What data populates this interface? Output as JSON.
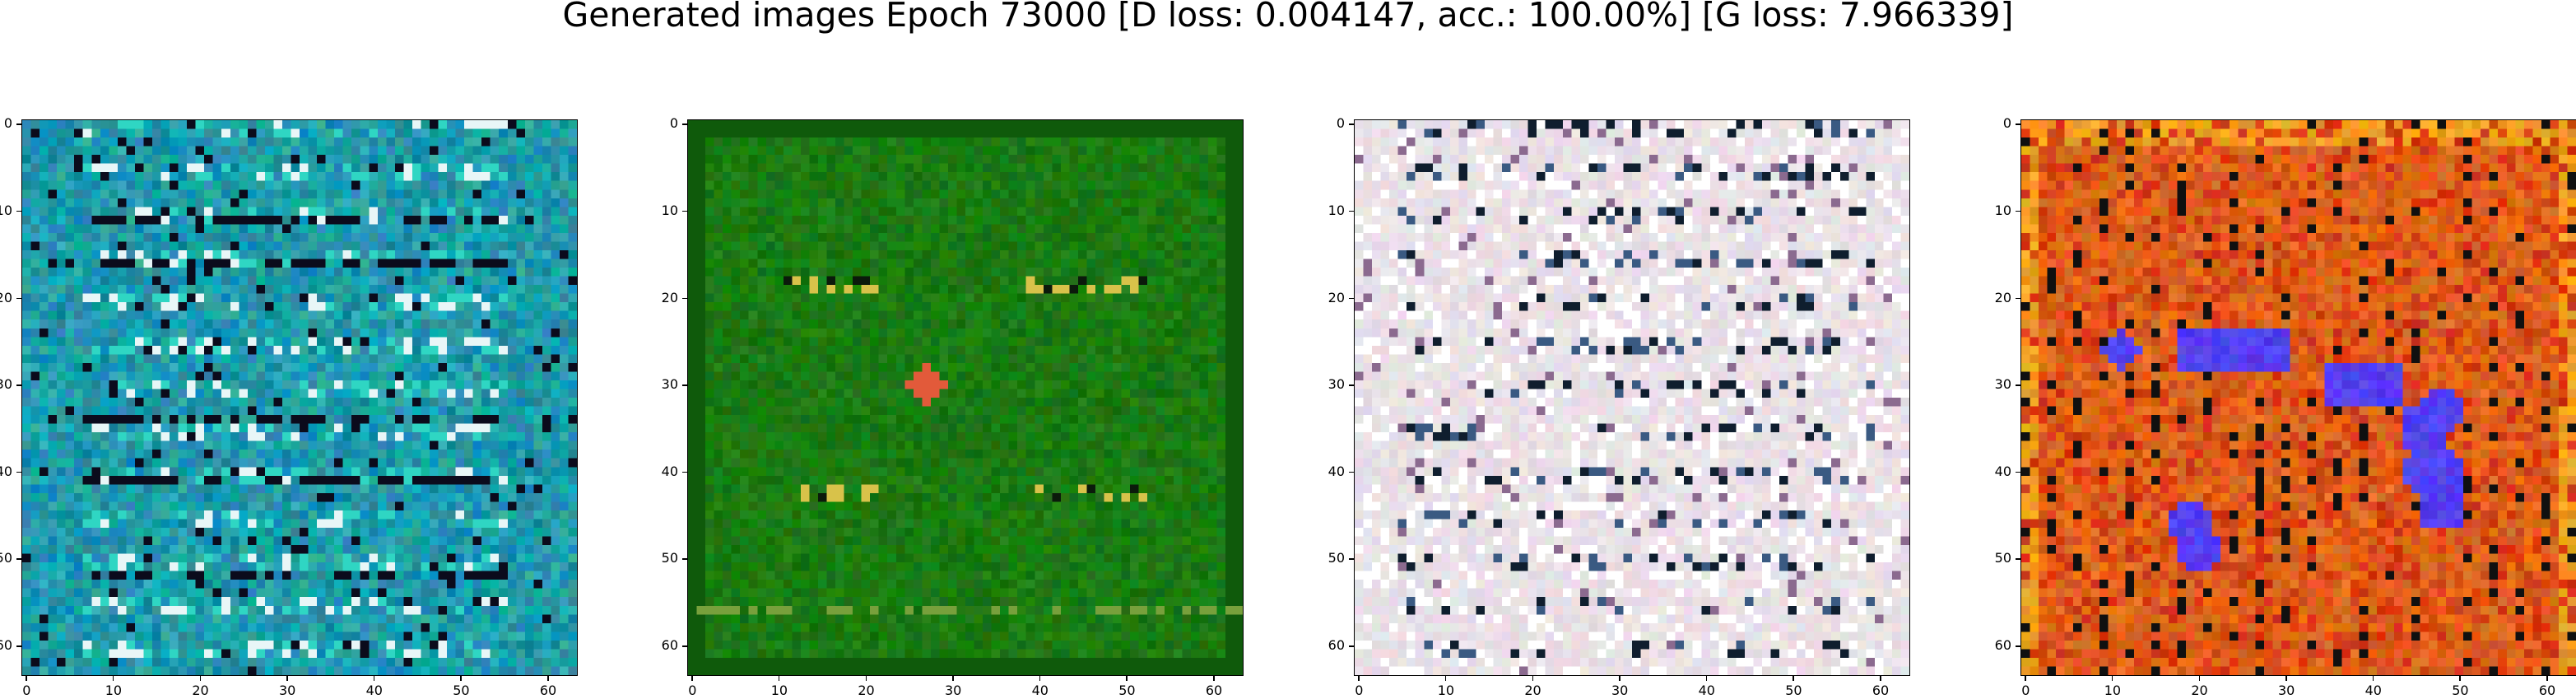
{
  "figure": {
    "title": "Generated images Epoch 73000 [D loss: 0.004147, acc.: 100.00%] [G loss: 7.966339]"
  },
  "axes": {
    "xlim": [
      -0.5,
      63.5
    ],
    "ylim": [
      63.5,
      -0.5
    ],
    "x_ticks": [
      "0",
      "10",
      "20",
      "30",
      "40",
      "50",
      "60"
    ],
    "y_ticks": [
      "0",
      "10",
      "20",
      "30",
      "40",
      "50",
      "60"
    ]
  },
  "panels": [
    {
      "id": "panel-1",
      "theme": "teal",
      "base_color": "#1f9aab",
      "accent_colors": [
        "#2fd6c3",
        "#0a5e6e",
        "#0b0b1c",
        "#e8f6f7"
      ]
    },
    {
      "id": "panel-2",
      "theme": "green",
      "base_color": "#1b7a12",
      "accent_colors": [
        "#0f5a0b",
        "#d8c24a",
        "#e25a3a",
        "#0b1a0b"
      ]
    },
    {
      "id": "panel-3",
      "theme": "pale",
      "base_color": "#e9e0e6",
      "accent_colors": [
        "#ffffff",
        "#0f1e2e",
        "#3a5a82",
        "#8b6a8f"
      ]
    },
    {
      "id": "panel-4",
      "theme": "orange",
      "base_color": "#e0641c",
      "accent_colors": [
        "#d43a14",
        "#f0a020",
        "#5340f0",
        "#101010"
      ]
    }
  ]
}
